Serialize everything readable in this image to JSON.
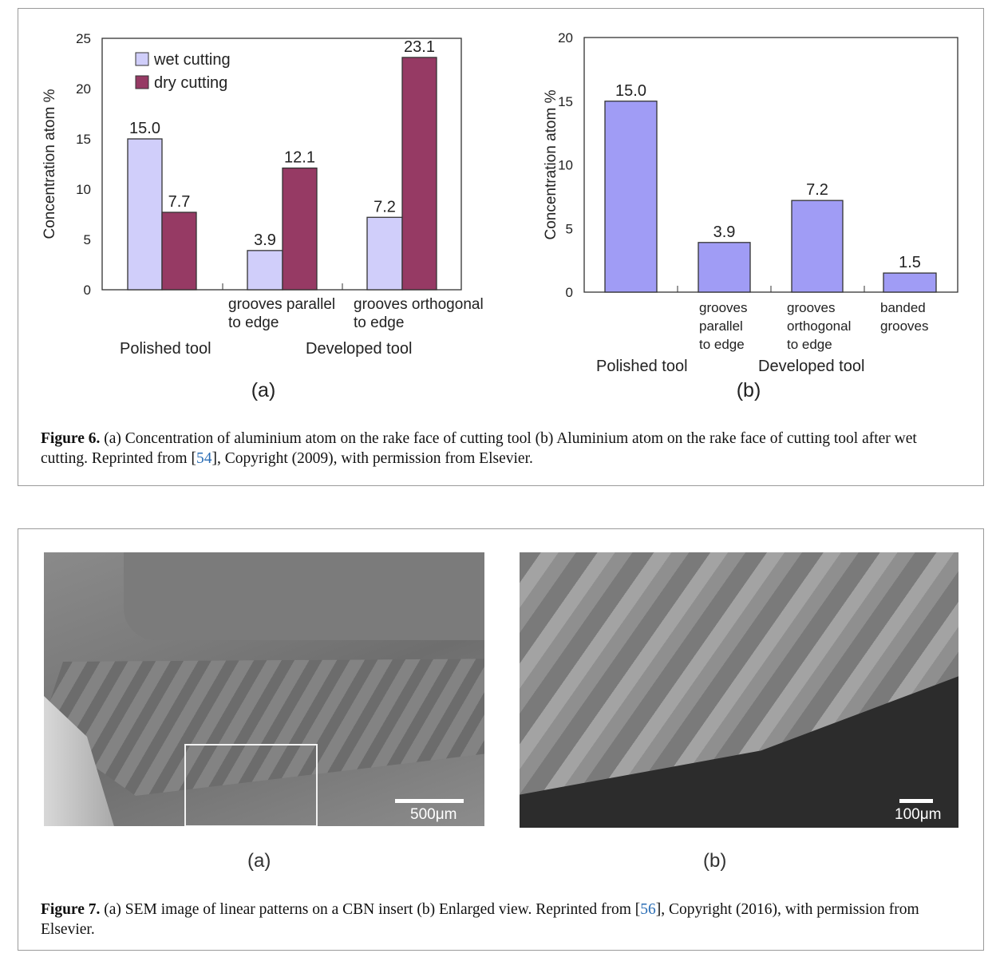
{
  "figure6": {
    "caption_label": "Figure 6.",
    "caption_text_1": " (a) Concentration of aluminium atom on the rake face of cutting tool (b) Aluminium atom on the rake face of cutting tool after wet cutting. Reprinted from [",
    "caption_ref": "54",
    "caption_text_2": "], Copyright (2009), with permission from Elsevier."
  },
  "figure7": {
    "caption_label": "Figure 7.",
    "caption_text_1": " (a) SEM image of linear patterns on a CBN insert (b) Enlarged view. Reprinted from [",
    "caption_ref": "56",
    "caption_text_2": "], Copyright (2016), with permission from Elsevier.",
    "panel_a_label": "(a)",
    "panel_b_label": "(b)",
    "scale_a": "500μm",
    "scale_b": "100μm"
  },
  "chart_data": [
    {
      "type": "bar",
      "panel_label": "(a)",
      "ylabel": "Concentration atom %",
      "ylim": [
        0,
        25
      ],
      "yticks": [
        "0",
        "5",
        "10",
        "15",
        "20",
        "25"
      ],
      "categories": [
        "",
        "grooves parallel\nto edge",
        "grooves orthogonal\nto edge"
      ],
      "group_labels": [
        "Polished tool",
        "Developed tool"
      ],
      "series": [
        {
          "name": "wet cutting",
          "color": "#d0cefa",
          "values": [
            15.0,
            3.9,
            7.2
          ],
          "labels": [
            "15.0",
            "3.9",
            "7.2"
          ]
        },
        {
          "name": "dry cutting",
          "color": "#963a64",
          "values": [
            7.7,
            12.1,
            23.1
          ],
          "labels": [
            "7.7",
            "12.1",
            "23.1"
          ]
        }
      ],
      "legend": "top-left"
    },
    {
      "type": "bar",
      "panel_label": "(b)",
      "ylabel": "Concentration atom %",
      "ylim": [
        0,
        20
      ],
      "yticks": [
        "0",
        "5",
        "10",
        "15",
        "20"
      ],
      "categories": [
        "",
        "grooves\nparallel\nto edge",
        "grooves\northogonal\nto edge",
        "banded\ngrooves"
      ],
      "group_labels": [
        "Polished tool",
        "Developed tool"
      ],
      "series": [
        {
          "name": "wet cutting",
          "color": "#a09cf5",
          "values": [
            15.0,
            3.9,
            7.2,
            1.5
          ],
          "labels": [
            "15.0",
            "3.9",
            "7.2",
            "1.5"
          ]
        }
      ]
    }
  ]
}
